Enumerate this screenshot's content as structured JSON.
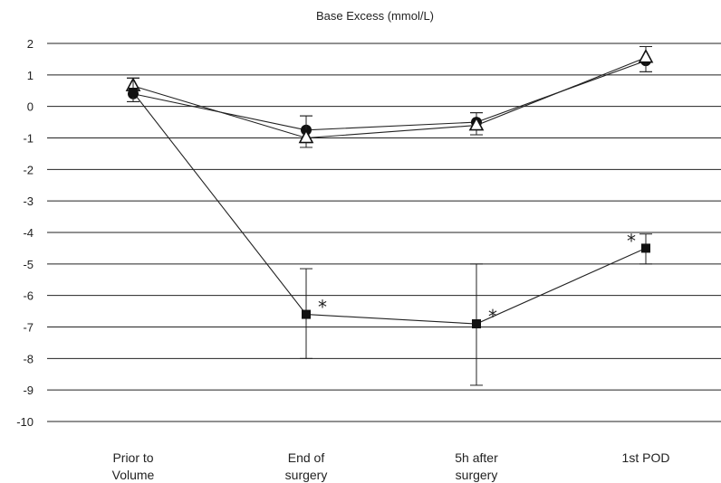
{
  "chart_data": {
    "type": "line",
    "title": "Base Excess (mmol/L)",
    "xlabel": "",
    "ylabel": "",
    "categories": [
      [
        "Prior to",
        "Volume"
      ],
      [
        "End of",
        "surgery"
      ],
      [
        "5h after",
        "surgery"
      ],
      [
        "1st POD"
      ]
    ],
    "ylim": [
      -10,
      2
    ],
    "yticks": [
      2,
      1,
      0,
      -1,
      -2,
      -3,
      -4,
      -5,
      -6,
      -7,
      -8,
      -9,
      -10
    ],
    "grid": true,
    "legend": "none",
    "series": [
      {
        "marker": "circle",
        "values": [
          0.4,
          -0.75,
          -0.5,
          1.45
        ],
        "error_low": [
          0.15,
          -1.15,
          -0.9,
          1.1
        ],
        "error_high": [
          0.9,
          -0.3,
          -0.2,
          1.9
        ]
      },
      {
        "marker": "triangle",
        "values": [
          0.65,
          -1.0,
          -0.6,
          1.55
        ],
        "error_low": [
          0.15,
          -1.3,
          -0.9,
          1.1
        ],
        "error_high": [
          0.9,
          -0.3,
          -0.2,
          1.9
        ]
      },
      {
        "marker": "square",
        "values": [
          0.45,
          -6.6,
          -6.9,
          -4.5
        ],
        "error_low": [
          0.15,
          -8.0,
          -8.85,
          -5.0
        ],
        "error_high": [
          0.9,
          -5.15,
          -5.0,
          -4.05
        ],
        "significant": [
          false,
          true,
          true,
          true
        ]
      }
    ],
    "annotation_symbol": "*",
    "colors": {
      "line": "#222222",
      "grid": "#222222",
      "marker": "#111111",
      "background": "#ffffff"
    }
  }
}
